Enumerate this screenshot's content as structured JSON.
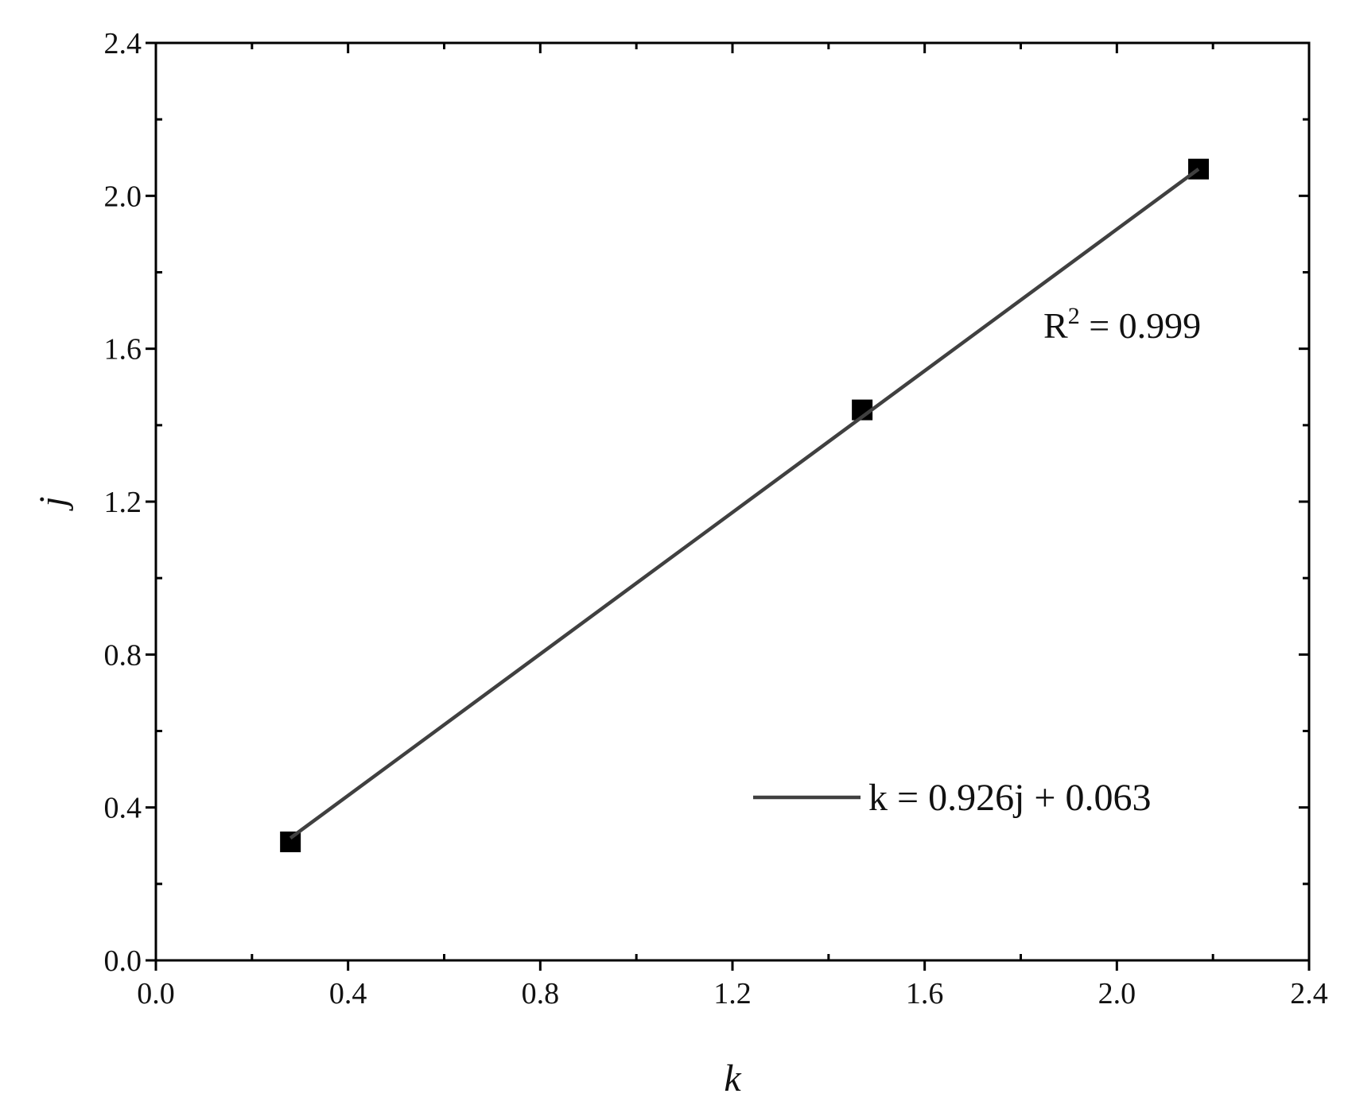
{
  "chart_data": {
    "type": "scatter",
    "xlabel": "k",
    "ylabel": "j",
    "xlim": [
      0,
      2.4
    ],
    "ylim": [
      0,
      2.4
    ],
    "xticks": [
      {
        "value": 0,
        "label": "0.0"
      },
      0.4,
      0.8,
      1.2,
      1.6,
      {
        "value": 2,
        "label": "2.0"
      },
      2.4
    ],
    "yticks": [
      {
        "value": 0,
        "label": "0.0"
      },
      0.4,
      0.8,
      1.2,
      1.6,
      {
        "value": 2,
        "label": "2.0"
      },
      2.4
    ],
    "xminorticks": [
      0.2,
      0.6,
      1.0,
      1.4,
      1.8,
      2.2
    ],
    "yminorticks": [
      0.2,
      0.6,
      1.0,
      1.4,
      1.8,
      2.2
    ],
    "series": [
      {
        "type": "scatter",
        "color": "#000000",
        "x": [
          0.28,
          1.47,
          2.17
        ],
        "values": [
          0.31,
          1.44,
          2.07
        ]
      },
      {
        "type": "line",
        "name": "k = 0.926j + 0.063",
        "color": "#404040",
        "x": [
          0.28,
          2.17
        ],
        "values": [
          0.32,
          2.07
        ]
      }
    ],
    "legend": "lower right",
    "annotations": [
      {
        "text": "R",
        "superscript": "2",
        "suffix": " = 0.999"
      }
    ]
  }
}
